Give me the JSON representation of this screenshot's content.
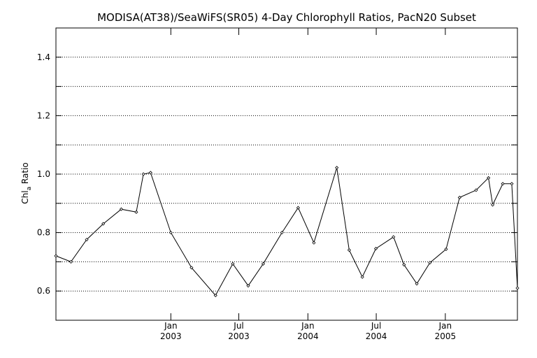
{
  "chart_data": {
    "type": "line",
    "title": "MODISA(AT38)/SeaWiFS(SR05) 4-Day Chlorophyll Ratios, PacN20 Subset",
    "ylabel_main": "Chl",
    "ylabel_sub": "a",
    "ylabel_rest": " Ratio",
    "xlabel": "",
    "ylim": [
      0.5,
      1.5
    ],
    "xlim": [
      "2002-03-01",
      "2005-07-12"
    ],
    "grid": true,
    "y_ticks": [
      0.6,
      0.8,
      1.0,
      1.2,
      1.4
    ],
    "y_tick_labels": [
      "0.6",
      "0.8",
      "1.0",
      "1.2",
      "1.4"
    ],
    "x_ticks": [
      {
        "date": "2003-01-01",
        "line1": "Jan",
        "line2": "2003"
      },
      {
        "date": "2003-07-01",
        "line1": "Jul",
        "line2": "2003"
      },
      {
        "date": "2004-01-01",
        "line1": "Jan",
        "line2": "2004"
      },
      {
        "date": "2004-07-01",
        "line1": "Jul",
        "line2": "2004"
      },
      {
        "date": "2005-01-01",
        "line1": "Jan",
        "line2": "2005"
      }
    ],
    "series": [
      {
        "points": [
          {
            "x": "2002-03-01",
            "y": 0.72
          },
          {
            "x": "2002-04-10",
            "y": 0.7
          },
          {
            "x": "2002-05-22",
            "y": 0.776
          },
          {
            "x": "2002-07-05",
            "y": 0.83
          },
          {
            "x": "2002-08-22",
            "y": 0.88
          },
          {
            "x": "2002-10-01",
            "y": 0.87
          },
          {
            "x": "2002-10-20",
            "y": 1.0
          },
          {
            "x": "2002-11-08",
            "y": 1.005
          },
          {
            "x": "2003-01-01",
            "y": 0.8
          },
          {
            "x": "2003-02-25",
            "y": 0.68
          },
          {
            "x": "2003-04-30",
            "y": 0.585
          },
          {
            "x": "2003-06-15",
            "y": 0.693
          },
          {
            "x": "2003-07-26",
            "y": 0.618
          },
          {
            "x": "2003-09-04",
            "y": 0.693
          },
          {
            "x": "2003-10-24",
            "y": 0.8
          },
          {
            "x": "2003-12-06",
            "y": 0.885
          },
          {
            "x": "2004-01-17",
            "y": 0.765
          },
          {
            "x": "2004-03-18",
            "y": 1.022
          },
          {
            "x": "2004-04-20",
            "y": 0.74
          },
          {
            "x": "2004-05-25",
            "y": 0.648
          },
          {
            "x": "2004-06-30",
            "y": 0.745
          },
          {
            "x": "2004-08-16",
            "y": 0.785
          },
          {
            "x": "2004-09-13",
            "y": 0.69
          },
          {
            "x": "2004-10-17",
            "y": 0.625
          },
          {
            "x": "2004-11-21",
            "y": 0.697
          },
          {
            "x": "2005-01-03",
            "y": 0.743
          },
          {
            "x": "2005-02-08",
            "y": 0.92
          },
          {
            "x": "2005-03-24",
            "y": 0.945
          },
          {
            "x": "2005-04-26",
            "y": 0.987
          },
          {
            "x": "2005-05-07",
            "y": 0.895
          },
          {
            "x": "2005-06-03",
            "y": 0.967
          },
          {
            "x": "2005-06-27",
            "y": 0.967
          },
          {
            "x": "2005-07-12",
            "y": 0.61
          }
        ]
      }
    ]
  }
}
